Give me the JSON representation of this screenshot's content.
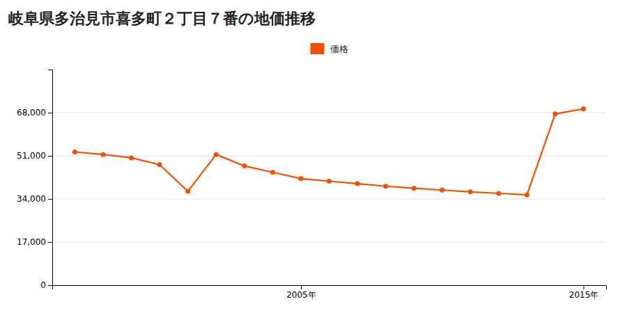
{
  "chart_data": {
    "type": "line",
    "title": "岐阜県多治見市喜多町２丁目７番の地価推移",
    "x": [
      1997,
      1998,
      1999,
      2000,
      2001,
      2002,
      2003,
      2004,
      2005,
      2006,
      2007,
      2008,
      2009,
      2010,
      2011,
      2012,
      2013,
      2014,
      2015
    ],
    "series": [
      {
        "name": "価格",
        "color": "#f05000",
        "marker": "circle",
        "values": [
          52500,
          51500,
          50200,
          47500,
          37000,
          51500,
          47000,
          44500,
          42000,
          41000,
          40000,
          39000,
          38200,
          37500,
          36800,
          36200,
          35600,
          67500,
          69500
        ]
      }
    ],
    "xlim": [
      1996.2,
      2015.8
    ],
    "xticks": [
      {
        "value": 2005,
        "label": "2005年"
      },
      {
        "value": 2015,
        "label": "2015年"
      }
    ],
    "ylim": [
      0,
      85000
    ],
    "yticks": [
      0,
      {
        "value": 17000,
        "label": "17,000"
      },
      {
        "value": 34000,
        "label": "34,000"
      },
      {
        "value": 51000,
        "label": "51,000"
      },
      {
        "value": 68000,
        "label": "68,000"
      }
    ],
    "grid": true,
    "legend": "top"
  }
}
